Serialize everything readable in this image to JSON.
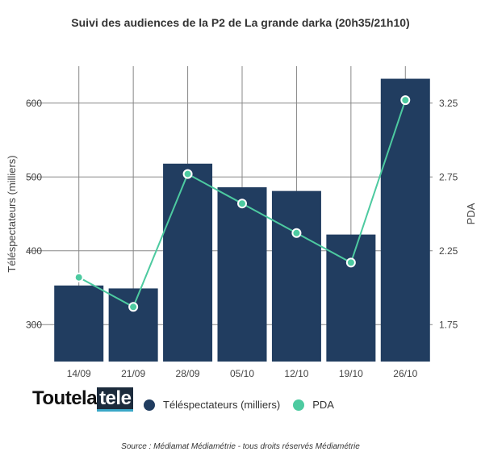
{
  "chart_data": {
    "type": "bar",
    "title": "Suivi des audiences de la P2 de La grande darka (20h35/21h10)",
    "categories": [
      "14/09",
      "21/09",
      "28/09",
      "05/10",
      "12/10",
      "19/10",
      "26/10"
    ],
    "series": [
      {
        "name": "Téléspectateurs (milliers)",
        "type": "bar",
        "axis": "left",
        "values": [
          353,
          349,
          518,
          486,
          481,
          422,
          633
        ],
        "color": "#213d60"
      },
      {
        "name": "PDA",
        "type": "line",
        "axis": "right",
        "values": [
          2.07,
          1.87,
          2.77,
          2.57,
          2.37,
          2.17,
          3.27
        ],
        "color": "#4dcaa0"
      }
    ],
    "ylabel": "Téléspectateurs (milliers)",
    "y2label": "PDA",
    "ylim": [
      250,
      650
    ],
    "y2lim": [
      1.5,
      3.5
    ],
    "yticks": [
      "300",
      "400",
      "500",
      "600"
    ],
    "y2ticks": [
      "1.75",
      "2.25",
      "2.75",
      "3.25"
    ],
    "grid": true,
    "legend_position": "bottom"
  },
  "logo": {
    "text_plain": "Toutela",
    "text_box": "tele"
  },
  "source": "Source : Médiamat Médiamétrie - tous droits réservés Médiamétrie"
}
